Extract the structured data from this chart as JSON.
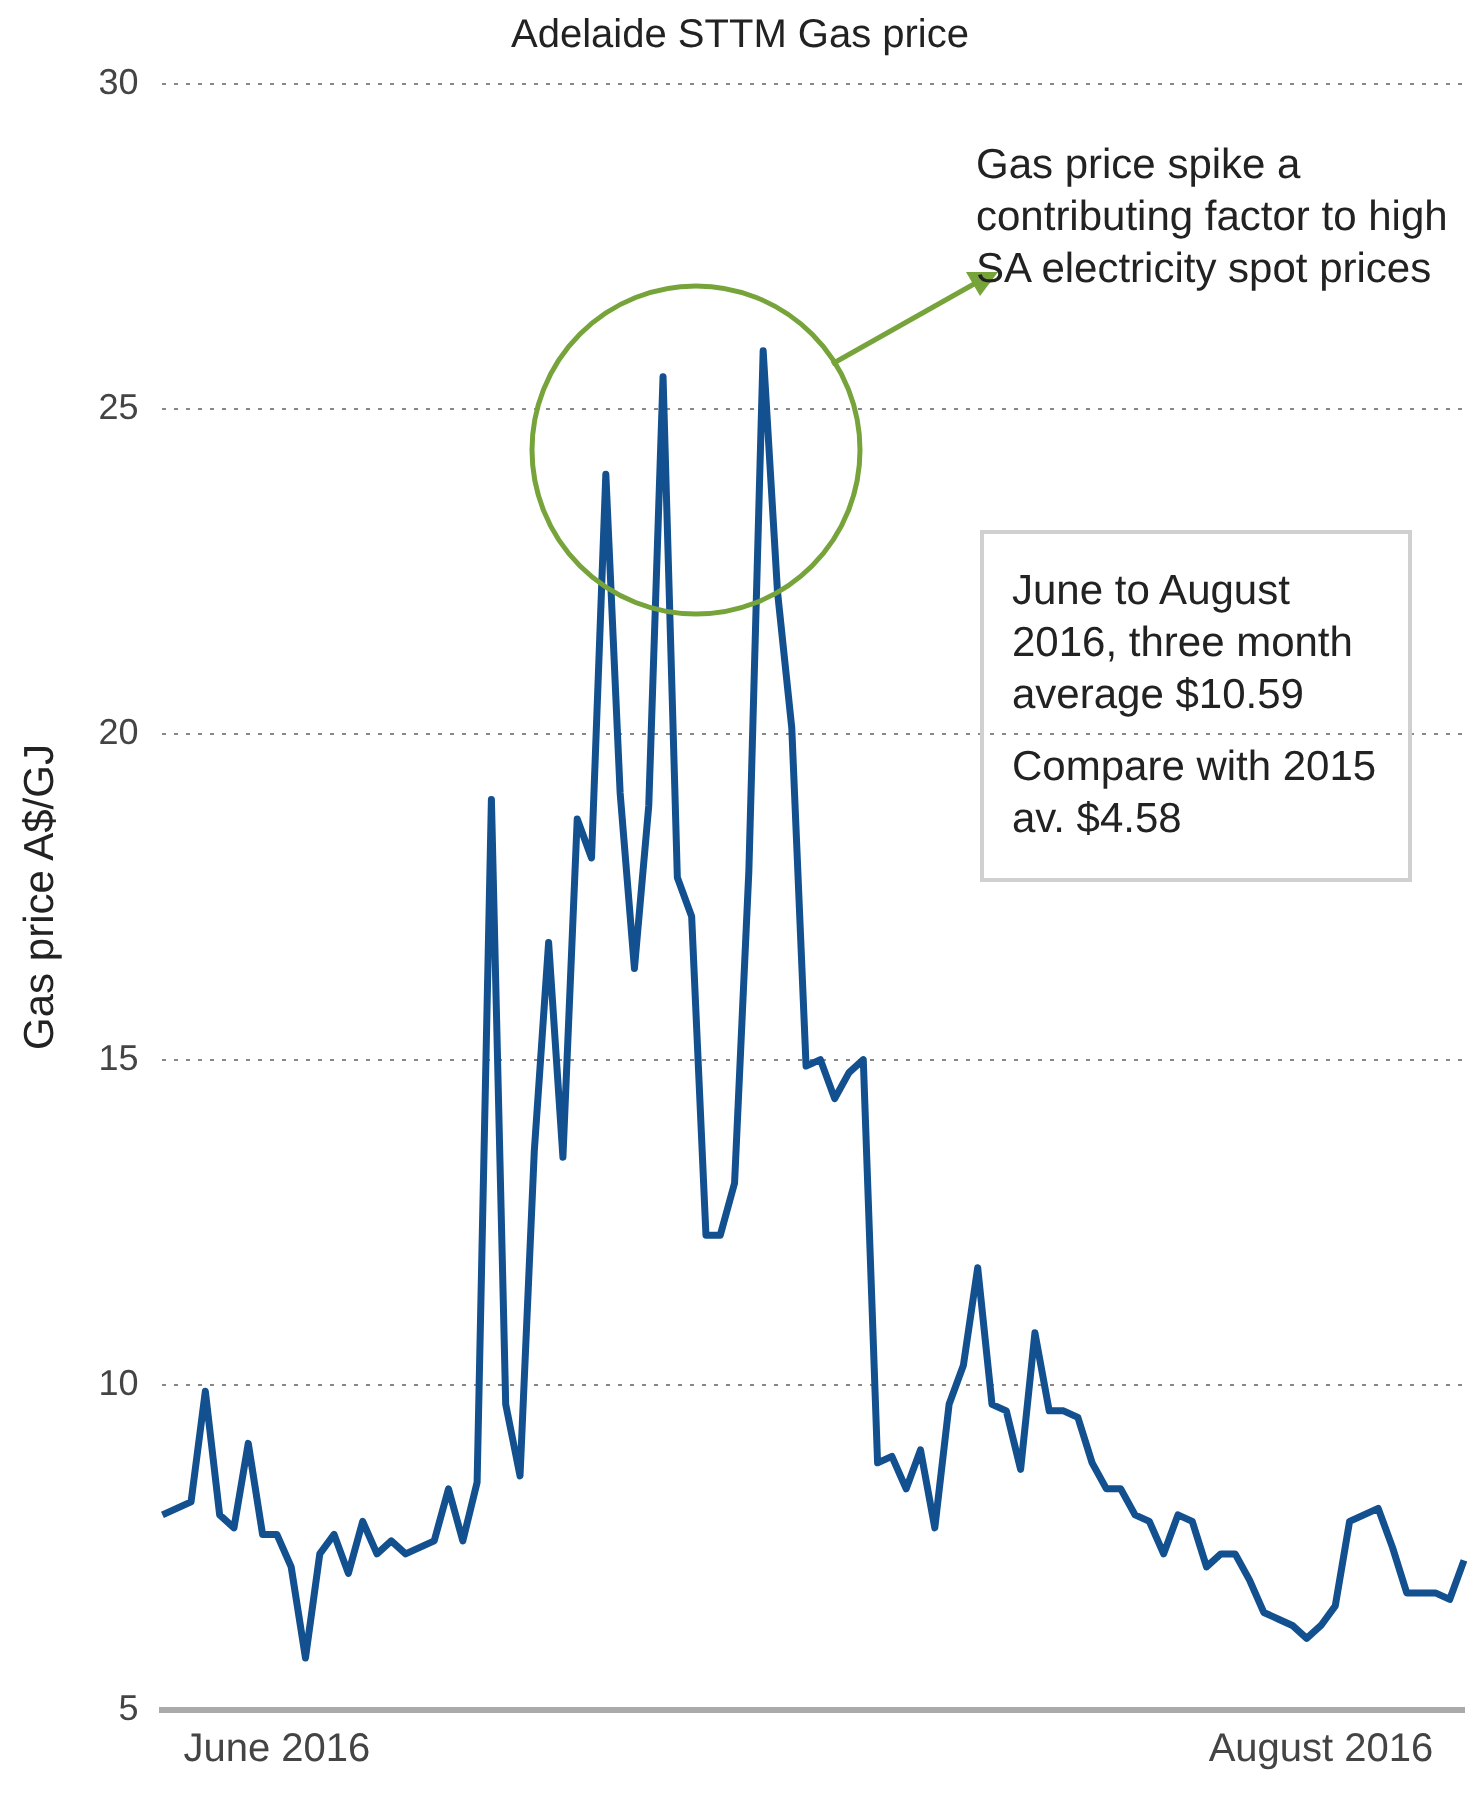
{
  "chart_data": {
    "type": "line",
    "title": "Adelaide STTM Gas price",
    "ylabel": "Gas price A$/GJ",
    "categories": [
      null,
      null,
      null,
      null,
      null,
      null,
      null,
      null,
      "June 2016",
      null,
      null,
      null,
      null,
      null,
      null,
      null,
      null,
      null,
      null,
      null,
      null,
      null,
      null,
      null,
      null,
      null,
      null,
      null,
      null,
      null,
      null,
      null,
      null,
      null,
      null,
      null,
      null,
      null,
      null,
      null,
      null,
      null,
      null,
      null,
      null,
      null,
      null,
      null,
      null,
      null,
      null,
      null,
      null,
      null,
      null,
      null,
      null,
      null,
      null,
      null,
      null,
      null,
      null,
      null,
      null,
      null,
      null,
      null,
      null,
      null,
      null,
      null,
      null,
      null,
      null,
      null,
      null,
      null,
      null,
      null,
      null,
      "August 2016",
      null,
      null,
      null,
      null,
      null,
      null,
      null,
      null,
      null,
      null
    ],
    "series": [
      {
        "color": "#12508f",
        "values": [
          8.0,
          8.1,
          8.2,
          9.9,
          8.0,
          7.8,
          9.1,
          7.7,
          7.7,
          7.2,
          5.8,
          7.4,
          7.7,
          7.1,
          7.9,
          7.4,
          7.6,
          7.4,
          7.5,
          7.6,
          8.4,
          7.6,
          8.5,
          19.0,
          9.7,
          8.6,
          13.6,
          16.8,
          13.5,
          18.7,
          18.1,
          24.0,
          19.1,
          16.4,
          18.9,
          25.5,
          17.8,
          17.2,
          12.3,
          12.3,
          13.1,
          17.9,
          25.9,
          22.2,
          20.1,
          14.9,
          15.0,
          14.4,
          14.8,
          15.0,
          8.8,
          8.9,
          8.4,
          9.0,
          7.8,
          9.7,
          10.3,
          11.8,
          9.7,
          9.6,
          8.7,
          10.8,
          9.6,
          9.6,
          9.5,
          8.8,
          8.4,
          8.4,
          8.0,
          7.9,
          7.4,
          8.0,
          7.9,
          7.2,
          7.4,
          7.4,
          7.0,
          6.5,
          6.4,
          6.3,
          6.1,
          6.3,
          6.6,
          7.9,
          8.0,
          8.1,
          7.5,
          6.8,
          6.8,
          6.8,
          6.7,
          7.3
        ]
      }
    ],
    "ylim": [
      5,
      30
    ],
    "yticks": [
      5,
      10,
      15,
      20,
      25,
      30
    ],
    "grid": "y",
    "annotations": [
      "Gas price spike a contributing factor to high SA electricity spot prices",
      "June to August 2016, three month average $10.59",
      "Compare with 2015 av. $4.58"
    ]
  }
}
